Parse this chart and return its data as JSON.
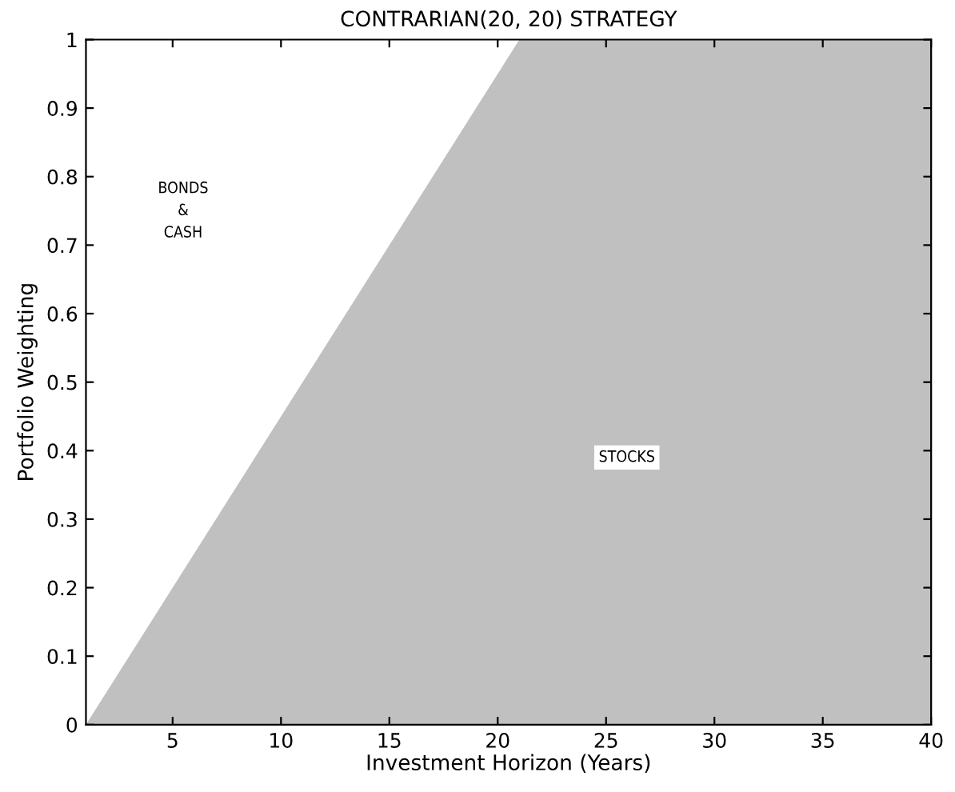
{
  "chart_data": {
    "type": "area",
    "title": "CONTRARIAN(20, 20) STRATEGY",
    "xlabel": "Investment Horizon (Years)",
    "ylabel": "Portfolio Weighting",
    "x": [
      1,
      21,
      40
    ],
    "series": [
      {
        "color": "#c0c0c0",
        "values": [
          0,
          1,
          1
        ]
      }
    ],
    "xlim": [
      1,
      40
    ],
    "xticks": [
      5,
      10,
      15,
      20,
      25,
      30,
      35,
      40
    ],
    "ylim": [
      0,
      1
    ],
    "yticks": [
      0,
      0.1,
      0.2,
      0.3,
      0.4,
      0.5,
      0.6,
      0.7,
      0.8,
      0.9,
      1
    ],
    "annotations": [
      "BONDS\n&\nCASH",
      "STOCKS"
    ],
    "grid": false,
    "legend": false
  }
}
